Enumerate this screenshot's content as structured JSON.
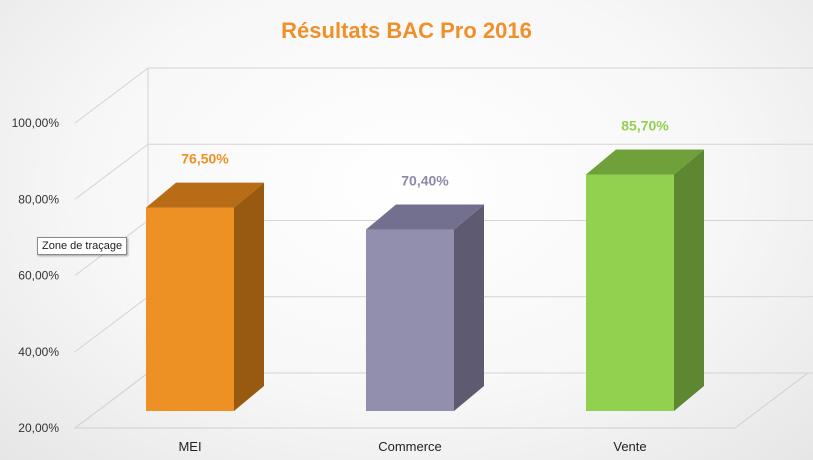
{
  "chart_data": {
    "type": "bar",
    "title": "Résultats BAC Pro 2016",
    "categories": [
      "MEI",
      "Commerce",
      "Vente"
    ],
    "values": [
      76.5,
      70.4,
      85.7
    ],
    "value_labels": [
      "76,50%",
      "70,40%",
      "85,70%"
    ],
    "ylim": [
      20,
      100
    ],
    "yticks": [
      20,
      40,
      60,
      80,
      100
    ],
    "ytick_labels": [
      "20,00%",
      "40,00%",
      "60,00%",
      "80,00%",
      "100,00%"
    ],
    "grid": true,
    "style": "3d-column",
    "colors": {
      "MEI": {
        "front": "#ed9124",
        "side": "#975a10",
        "top": "#b86c16",
        "label": "#ed9124"
      },
      "Commerce": {
        "front": "#928eae",
        "side": "#5d5a72",
        "top": "#73708f",
        "label": "#8d89a8"
      },
      "Vente": {
        "front": "#92d14f",
        "side": "#5e8731",
        "top": "#6fa03a",
        "label": "#92d14f"
      }
    },
    "title_color": "#f0902a"
  },
  "tooltip": {
    "text": "Zone de traçage"
  }
}
